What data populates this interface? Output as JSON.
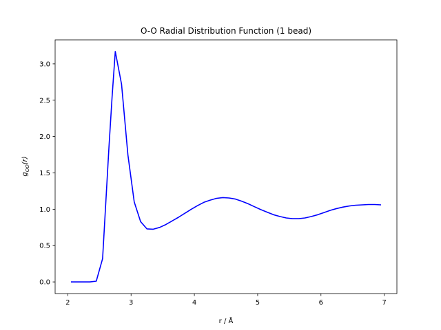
{
  "chart_data": {
    "type": "line",
    "title": "O-O Radial Distribution Function (1 bead)",
    "xlabel": "r / Å",
    "ylabel": "g_OO(r)",
    "ylabel_main": "g",
    "ylabel_sub": "OO",
    "ylabel_arg": "(r)",
    "xlim": [
      1.8,
      7.2
    ],
    "ylim": [
      -0.16,
      3.33
    ],
    "xticks": [
      2,
      3,
      4,
      5,
      6,
      7
    ],
    "xtick_labels": [
      "2",
      "3",
      "4",
      "5",
      "6",
      "7"
    ],
    "yticks": [
      0.0,
      0.5,
      1.0,
      1.5,
      2.0,
      2.5,
      3.0
    ],
    "ytick_labels": [
      "0.0",
      "0.5",
      "1.0",
      "1.5",
      "2.0",
      "2.5",
      "3.0"
    ],
    "grid": false,
    "series": [
      {
        "color": "#0000ff",
        "x": [
          2.05,
          2.15,
          2.25,
          2.35,
          2.45,
          2.55,
          2.65,
          2.7,
          2.75,
          2.85,
          2.95,
          3.05,
          3.15,
          3.25,
          3.35,
          3.45,
          3.55,
          3.65,
          3.75,
          3.85,
          3.95,
          4.05,
          4.15,
          4.25,
          4.35,
          4.45,
          4.55,
          4.65,
          4.75,
          4.85,
          4.95,
          5.05,
          5.15,
          5.25,
          5.35,
          5.45,
          5.55,
          5.65,
          5.75,
          5.85,
          5.95,
          6.05,
          6.15,
          6.25,
          6.35,
          6.45,
          6.55,
          6.65,
          6.75,
          6.85,
          6.95
        ],
        "y": [
          0.0,
          0.0,
          0.0,
          0.0,
          0.01,
          0.32,
          1.85,
          2.55,
          3.17,
          2.72,
          1.75,
          1.1,
          0.83,
          0.73,
          0.725,
          0.75,
          0.79,
          0.84,
          0.89,
          0.945,
          1.0,
          1.05,
          1.095,
          1.125,
          1.15,
          1.16,
          1.155,
          1.14,
          1.11,
          1.075,
          1.035,
          0.995,
          0.96,
          0.925,
          0.9,
          0.88,
          0.87,
          0.87,
          0.88,
          0.9,
          0.925,
          0.955,
          0.985,
          1.01,
          1.03,
          1.045,
          1.055,
          1.06,
          1.065,
          1.065,
          1.06
        ]
      }
    ]
  }
}
